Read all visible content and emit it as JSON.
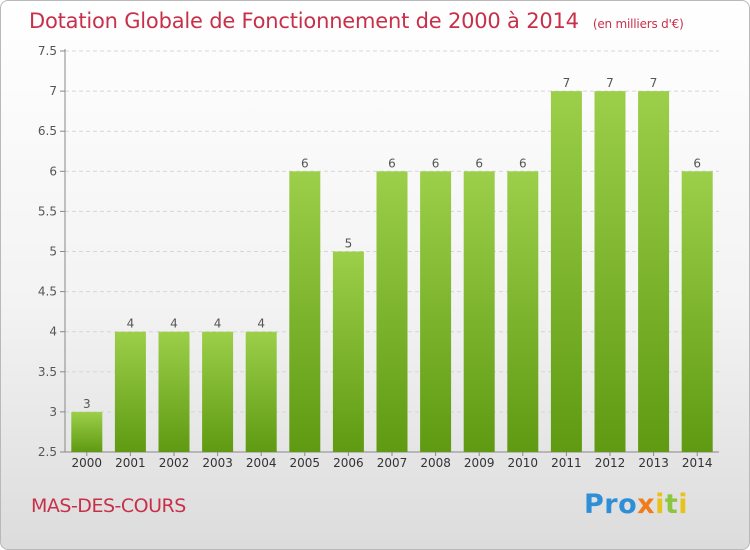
{
  "header": {
    "title": "Dotation Globale de Fonctionnement de 2000 à 2014",
    "subtitle": "(en milliers d'€)"
  },
  "footer": {
    "commune": "MAS-DES-COURS",
    "logo": {
      "p1": "Pro",
      "x": "x",
      "i1": "i",
      "t": "t",
      "i2": "i"
    }
  },
  "colors": {
    "bar_light": "#9ccf4a",
    "bar_dark": "#5f9a12",
    "title": "#c8304a",
    "axis": "#555555"
  },
  "chart_data": {
    "type": "bar",
    "title": "Dotation Globale de Fonctionnement de 2000 à 2014",
    "subtitle": "(en milliers d'€)",
    "xlabel": "",
    "ylabel": "",
    "categories": [
      "2000",
      "2001",
      "2002",
      "2003",
      "2004",
      "2005",
      "2006",
      "2007",
      "2008",
      "2009",
      "2010",
      "2011",
      "2012",
      "2013",
      "2014"
    ],
    "values": [
      3,
      4,
      4,
      4,
      4,
      6,
      5,
      6,
      6,
      6,
      6,
      7,
      7,
      7,
      6
    ],
    "ylim": [
      2.5,
      7.5
    ],
    "yticks": [
      2.5,
      3,
      3.5,
      4,
      4.5,
      5,
      5.5,
      6,
      6.5,
      7,
      7.5
    ],
    "ytick_labels": [
      "2.5",
      "3",
      "3.5",
      "4",
      "4.5",
      "5",
      "5.5",
      "6",
      "6.5",
      "7",
      "7.5"
    ],
    "grid": true
  }
}
